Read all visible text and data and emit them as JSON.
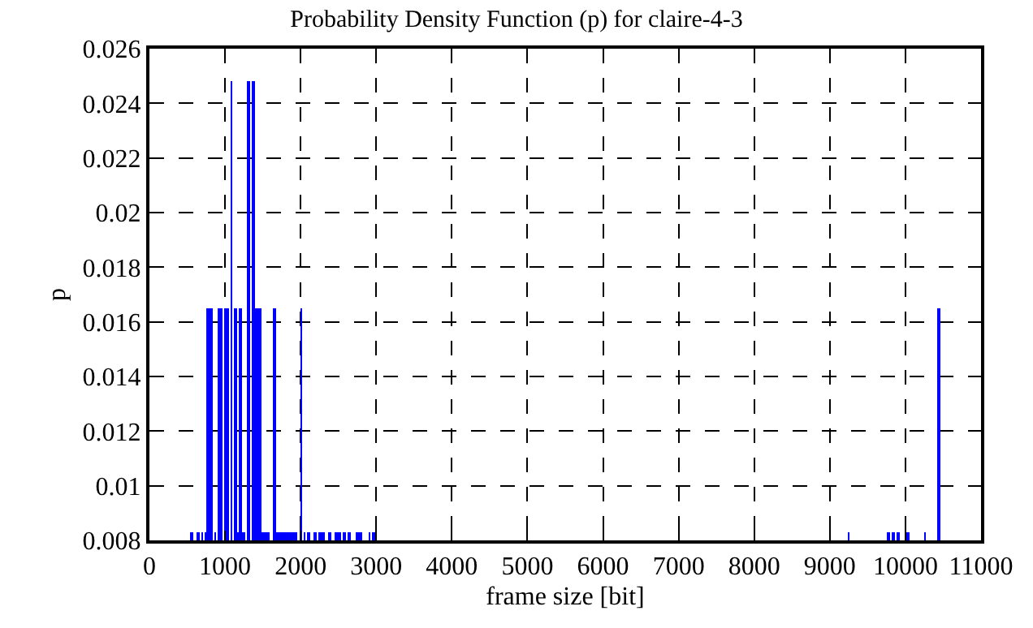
{
  "chart_data": {
    "type": "bar",
    "title": "Probability Density Function (p) for claire-4-3",
    "xlabel": "frame size [bit]",
    "ylabel": "p",
    "x": [
      560,
      650,
      700,
      740,
      780,
      825,
      870,
      915,
      955,
      1000,
      1040,
      1085,
      1130,
      1170,
      1210,
      1250,
      1310,
      1370,
      1410,
      1460,
      1500,
      1540,
      1580,
      1650,
      1690,
      1730,
      1770,
      1810,
      1850,
      1890,
      1930,
      2010,
      2050,
      2100,
      2200,
      2250,
      2300,
      2390,
      2470,
      2520,
      2570,
      2640,
      2750,
      2800,
      2910,
      2970,
      9250,
      9780,
      9840,
      9910,
      10030,
      10260,
      10450
    ],
    "values": [
      0.0083,
      0.0083,
      0.0083,
      0.0083,
      0.0165,
      0.0165,
      0.0083,
      0.0165,
      0.0165,
      0.0165,
      0.0165,
      0.0248,
      0.0165,
      0.0083,
      0.0165,
      0.0083,
      0.0248,
      0.0248,
      0.0165,
      0.0165,
      0.0083,
      0.0083,
      0.0083,
      0.0165,
      0.0083,
      0.0083,
      0.0083,
      0.0083,
      0.0083,
      0.0083,
      0.0083,
      0.0165,
      0.0083,
      0.0083,
      0.0083,
      0.0083,
      0.0083,
      0.0083,
      0.0083,
      0.0083,
      0.0083,
      0.0083,
      0.0083,
      0.0083,
      0.0083,
      0.0083,
      0.0083,
      0.0083,
      0.0083,
      0.0083,
      0.0083,
      0.0083,
      0.0165
    ],
    "color": "#0000ff",
    "xlim": [
      0,
      11000
    ],
    "xticks": [
      0,
      1000,
      2000,
      3000,
      4000,
      5000,
      6000,
      7000,
      8000,
      9000,
      10000,
      11000
    ],
    "ylim": [
      0.008,
      0.026
    ],
    "yticks": [
      0.008,
      0.01,
      0.012,
      0.014,
      0.016,
      0.018,
      0.02,
      0.022,
      0.024,
      0.026
    ],
    "grid": true,
    "legend": false
  }
}
